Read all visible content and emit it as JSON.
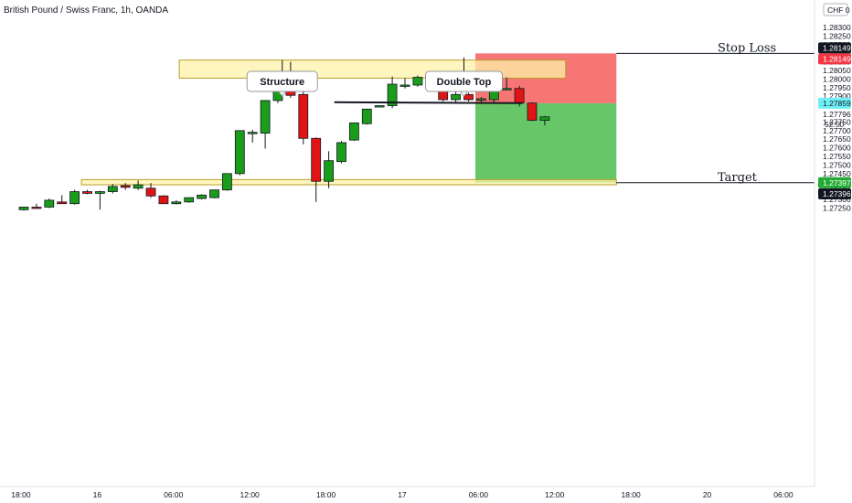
{
  "header": {
    "title": "British Pound / Swiss Franc, 1h, OANDA",
    "currency_label": "CHF",
    "currency_suffix": "0"
  },
  "chart_data": {
    "type": "candlestick",
    "title": "British Pound / Swiss Franc, 1h, OANDA",
    "ylim": [
      1.2722,
      1.285
    ],
    "y_ticks": [
      "1.28300",
      "1.28250",
      "1.28200",
      "1.28150",
      "1.28100",
      "1.28050",
      "1.28000",
      "1.27950",
      "1.27900",
      "1.27850",
      "1.27796",
      "1.27750",
      "1.27700",
      "1.27650",
      "1.27600",
      "1.27550",
      "1.27500",
      "1.27450",
      "1.27400",
      "1.27350",
      "1.27300",
      "1.27250"
    ],
    "x_ticks": [
      {
        "label": "18:00",
        "index": 0.5
      },
      {
        "label": "16",
        "index": 6.5
      },
      {
        "label": "06:00",
        "index": 12.5
      },
      {
        "label": "12:00",
        "index": 18.5
      },
      {
        "label": "18:00",
        "index": 24.5
      },
      {
        "label": "17",
        "index": 30.5
      },
      {
        "label": "06:00",
        "index": 36.5
      },
      {
        "label": "12:00",
        "index": 42.5
      },
      {
        "label": "18:00",
        "index": 48.5
      },
      {
        "label": "20",
        "index": 54.5
      },
      {
        "label": "06:00",
        "index": 60.5
      }
    ],
    "colors": {
      "up": "#1a9d1a",
      "down": "#e01414",
      "wick": "#131722",
      "zone": "#fdf3a8",
      "zone_border": "#b89d2a",
      "stop": "#f56e6e",
      "target": "#5fc35f"
    },
    "candles": [
      {
        "o": 1.2724,
        "h": 1.2725,
        "l": 1.27235,
        "c": 1.27255
      },
      {
        "o": 1.27255,
        "h": 1.27275,
        "l": 1.27245,
        "c": 1.2725
      },
      {
        "o": 1.27255,
        "h": 1.27305,
        "l": 1.2725,
        "c": 1.27295
      },
      {
        "o": 1.27285,
        "h": 1.27325,
        "l": 1.27275,
        "c": 1.27275
      },
      {
        "o": 1.27275,
        "h": 1.27355,
        "l": 1.2727,
        "c": 1.27345
      },
      {
        "o": 1.27345,
        "h": 1.27355,
        "l": 1.2733,
        "c": 1.27335
      },
      {
        "o": 1.27335,
        "h": 1.2735,
        "l": 1.2724,
        "c": 1.27345
      },
      {
        "o": 1.27345,
        "h": 1.2739,
        "l": 1.27335,
        "c": 1.27375
      },
      {
        "o": 1.2738,
        "h": 1.27395,
        "l": 1.27355,
        "c": 1.2737
      },
      {
        "o": 1.27365,
        "h": 1.2741,
        "l": 1.27355,
        "c": 1.27385
      },
      {
        "o": 1.27365,
        "h": 1.27395,
        "l": 1.2731,
        "c": 1.2732
      },
      {
        "o": 1.2732,
        "h": 1.27325,
        "l": 1.27275,
        "c": 1.27275
      },
      {
        "o": 1.27275,
        "h": 1.27295,
        "l": 1.2727,
        "c": 1.27285
      },
      {
        "o": 1.27285,
        "h": 1.2731,
        "l": 1.2728,
        "c": 1.2731
      },
      {
        "o": 1.27305,
        "h": 1.2733,
        "l": 1.273,
        "c": 1.27325
      },
      {
        "o": 1.2731,
        "h": 1.27355,
        "l": 1.27305,
        "c": 1.27355
      },
      {
        "o": 1.27355,
        "h": 1.2745,
        "l": 1.2735,
        "c": 1.2745
      },
      {
        "o": 1.2745,
        "h": 1.277,
        "l": 1.2744,
        "c": 1.277
      },
      {
        "o": 1.27685,
        "h": 1.27705,
        "l": 1.2763,
        "c": 1.2769
      },
      {
        "o": 1.27685,
        "h": 1.27875,
        "l": 1.27595,
        "c": 1.27875
      },
      {
        "o": 1.27875,
        "h": 1.27995,
        "l": 1.2786,
        "c": 1.27995
      },
      {
        "o": 1.27995,
        "h": 1.281,
        "l": 1.2789,
        "c": 1.27905
      },
      {
        "o": 1.2791,
        "h": 1.27925,
        "l": 1.2762,
        "c": 1.27655
      },
      {
        "o": 1.27655,
        "h": 1.2766,
        "l": 1.27285,
        "c": 1.27405
      },
      {
        "o": 1.27405,
        "h": 1.2758,
        "l": 1.27365,
        "c": 1.27525
      },
      {
        "o": 1.2752,
        "h": 1.2764,
        "l": 1.2751,
        "c": 1.2763
      },
      {
        "o": 1.27645,
        "h": 1.27745,
        "l": 1.2764,
        "c": 1.27745
      },
      {
        "o": 1.2774,
        "h": 1.27825,
        "l": 1.27735,
        "c": 1.27825
      },
      {
        "o": 1.2784,
        "h": 1.27845,
        "l": 1.27835,
        "c": 1.27845
      },
      {
        "o": 1.27845,
        "h": 1.28015,
        "l": 1.2783,
        "c": 1.2797
      },
      {
        "o": 1.27965,
        "h": 1.28005,
        "l": 1.27945,
        "c": 1.27965
      },
      {
        "o": 1.27965,
        "h": 1.2802,
        "l": 1.27955,
        "c": 1.2801
      },
      {
        "o": 1.2801,
        "h": 1.2802,
        "l": 1.27945,
        "c": 1.27965
      },
      {
        "o": 1.27955,
        "h": 1.27975,
        "l": 1.2787,
        "c": 1.2788
      },
      {
        "o": 1.2788,
        "h": 1.27925,
        "l": 1.27865,
        "c": 1.2791
      },
      {
        "o": 1.2791,
        "h": 1.2792,
        "l": 1.2787,
        "c": 1.2788
      },
      {
        "o": 1.2788,
        "h": 1.27895,
        "l": 1.2786,
        "c": 1.27885
      },
      {
        "o": 1.2788,
        "h": 1.2796,
        "l": 1.2786,
        "c": 1.27945
      },
      {
        "o": 1.27945,
        "h": 1.2801,
        "l": 1.27935,
        "c": 1.27945
      },
      {
        "o": 1.27945,
        "h": 1.2796,
        "l": 1.2784,
        "c": 1.2786
      },
      {
        "o": 1.2786,
        "h": 1.27865,
        "l": 1.27755,
        "c": 1.2776
      },
      {
        "o": 1.2776,
        "h": 1.27785,
        "l": 1.2773,
        "c": 1.2778
      }
    ],
    "zones": [
      {
        "name": "structure-zone",
        "top": 1.2811,
        "bottom": 1.28005,
        "from_index": 12.6,
        "to_index": 43.0
      },
      {
        "name": "target-zone",
        "top": 1.27415,
        "bottom": 1.27385,
        "from_index": 4.9,
        "to_index": 47.0
      }
    ],
    "neckline": {
      "value": 1.27865,
      "from_index": 24.8,
      "to_index": 39.6
    },
    "position": {
      "entry": 1.27859,
      "stop": 1.28149,
      "target": 1.27397,
      "from_index": 35.9,
      "to_index": 47.0
    },
    "annotations": [
      {
        "name": "structure-callout",
        "label": "Structure",
        "index": 20.7,
        "value": 1.2811
      },
      {
        "name": "double-top-callout",
        "label": "Double Top",
        "index": 35.0,
        "value": 1.28125
      }
    ],
    "levels": [
      {
        "name": "stop-loss-label",
        "label": "Stop Loss",
        "value": 1.28149
      },
      {
        "name": "target-label",
        "label": "Target",
        "value": 1.27397
      }
    ],
    "price_tags": [
      {
        "name": "stop-price-tag-1",
        "text": "1.28149",
        "value": 1.28149,
        "bg": "#131722",
        "fg": "#ffffff",
        "offset": -6
      },
      {
        "name": "stop-price-tag-2",
        "text": "1.28149",
        "value": 1.28149,
        "bg": "#f23645",
        "fg": "#ffffff",
        "offset": 6
      },
      {
        "name": "entry-price-tag",
        "text": "1.27859",
        "value": 1.27859,
        "bg": "#6ef0f5",
        "fg": "#131722",
        "offset": 0
      },
      {
        "name": "target-price-tag-1",
        "text": "1.27397",
        "value": 1.27397,
        "bg": "#22ab32",
        "fg": "#ffffff",
        "offset": 0
      },
      {
        "name": "target-price-tag-2",
        "text": "1.27396",
        "value": 1.27396,
        "bg": "#131722",
        "fg": "#ffffff",
        "offset": 12
      }
    ],
    "countdown": "52:50"
  }
}
